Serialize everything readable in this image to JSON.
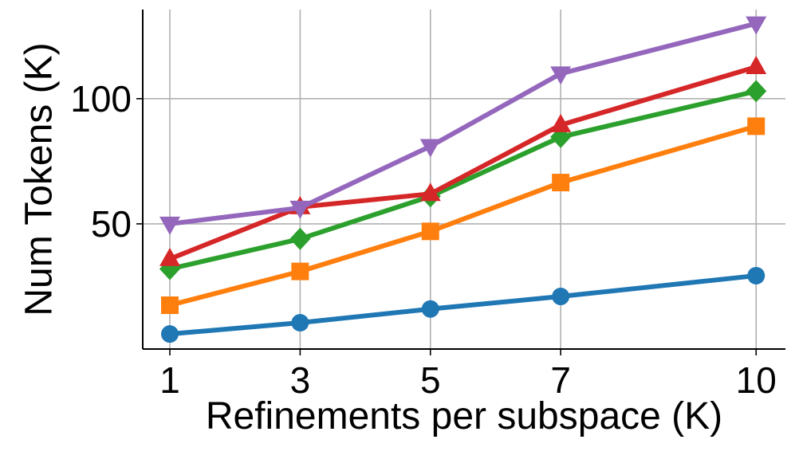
{
  "chart_data": {
    "type": "line",
    "x_label": "Refinements per subspace (K)",
    "y_label": "Num Tokens (K)",
    "x": [
      1,
      3,
      5,
      7,
      10
    ],
    "xlim": [
      0.584,
      10.45
    ],
    "xticks": [
      1,
      3,
      5,
      7,
      10
    ],
    "ylim": [
      0,
      135.6
    ],
    "yticks": [
      50,
      100
    ],
    "grid": true,
    "series": [
      {
        "color": "#1f77b4",
        "marker": "circle",
        "values": [
          6,
          10.5,
          16,
          21,
          29.3
        ]
      },
      {
        "color": "#ff7f0e",
        "marker": "square",
        "values": [
          17.5,
          31,
          47,
          66.5,
          89
        ]
      },
      {
        "color": "#2ca02c",
        "marker": "diamond",
        "values": [
          32,
          44,
          61,
          84.7,
          103
        ]
      },
      {
        "color": "#d62728",
        "marker": "triangle-up",
        "values": [
          36,
          56.7,
          62,
          89.5,
          112.7
        ]
      },
      {
        "color": "#9467bd",
        "marker": "triangle-down",
        "values": [
          50,
          56.4,
          81,
          110,
          130
        ]
      }
    ]
  }
}
